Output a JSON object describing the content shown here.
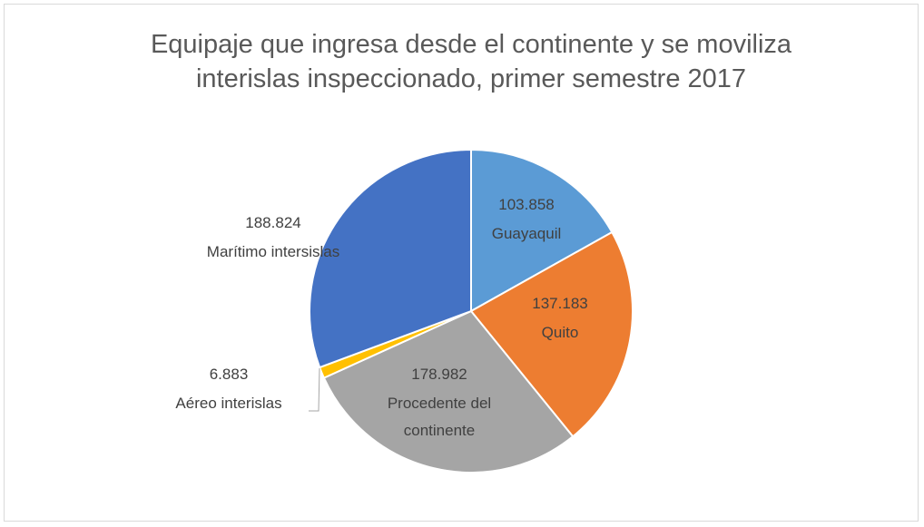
{
  "chart_data": {
    "type": "pie",
    "title": "Equipaje que ingresa desde el continente y se moviliza interislas inspeccionado, primer semestre 2017",
    "categories": [
      "Guayaquil",
      "Quito",
      "Procedente del continente",
      "Aéreo interislas",
      "Marítimo intersislas"
    ],
    "values": [
      103858,
      137183,
      178982,
      6883,
      188824
    ],
    "value_labels": [
      "103.858",
      "137.183",
      "178.982",
      "6.883",
      "188.824"
    ],
    "colors": [
      "#5b9bd5",
      "#ed7d31",
      "#a5a5a5",
      "#ffc000",
      "#4472c4"
    ]
  }
}
